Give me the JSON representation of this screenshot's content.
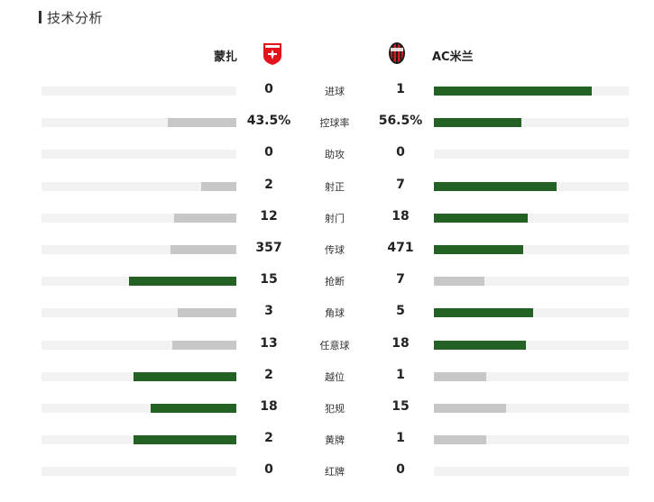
{
  "header": {
    "title": "技术分析"
  },
  "teams": {
    "home": {
      "name": "蒙扎",
      "crest_icon": "monza-crest-icon"
    },
    "away": {
      "name": "AC米兰",
      "crest_icon": "ac-milan-crest-icon"
    }
  },
  "colors": {
    "leader": "#246124",
    "trailer": "#c7c7c7",
    "track": "#f2f2f2"
  },
  "stats": [
    {
      "label": "进球",
      "home": "0",
      "away": "1",
      "home_pct": 0,
      "away_pct": 0.81
    },
    {
      "label": "控球率",
      "home": "43.5%",
      "away": "56.5%",
      "home_pct": 0.35,
      "away_pct": 0.45
    },
    {
      "label": "助攻",
      "home": "0",
      "away": "0",
      "home_pct": 0,
      "away_pct": 0
    },
    {
      "label": "射正",
      "home": "2",
      "away": "7",
      "home_pct": 0.18,
      "away_pct": 0.63
    },
    {
      "label": "射门",
      "home": "12",
      "away": "18",
      "home_pct": 0.32,
      "away_pct": 0.48
    },
    {
      "label": "传球",
      "home": "357",
      "away": "471",
      "home_pct": 0.34,
      "away_pct": 0.46
    },
    {
      "label": "抢断",
      "home": "15",
      "away": "7",
      "home_pct": 0.55,
      "away_pct": 0.26
    },
    {
      "label": "角球",
      "home": "3",
      "away": "5",
      "home_pct": 0.3,
      "away_pct": 0.51
    },
    {
      "label": "任意球",
      "home": "13",
      "away": "18",
      "home_pct": 0.33,
      "away_pct": 0.47
    },
    {
      "label": "越位",
      "home": "2",
      "away": "1",
      "home_pct": 0.53,
      "away_pct": 0.27
    },
    {
      "label": "犯规",
      "home": "18",
      "away": "15",
      "home_pct": 0.44,
      "away_pct": 0.37
    },
    {
      "label": "黄牌",
      "home": "2",
      "away": "1",
      "home_pct": 0.53,
      "away_pct": 0.27
    },
    {
      "label": "红牌",
      "home": "0",
      "away": "0",
      "home_pct": 0,
      "away_pct": 0
    }
  ]
}
